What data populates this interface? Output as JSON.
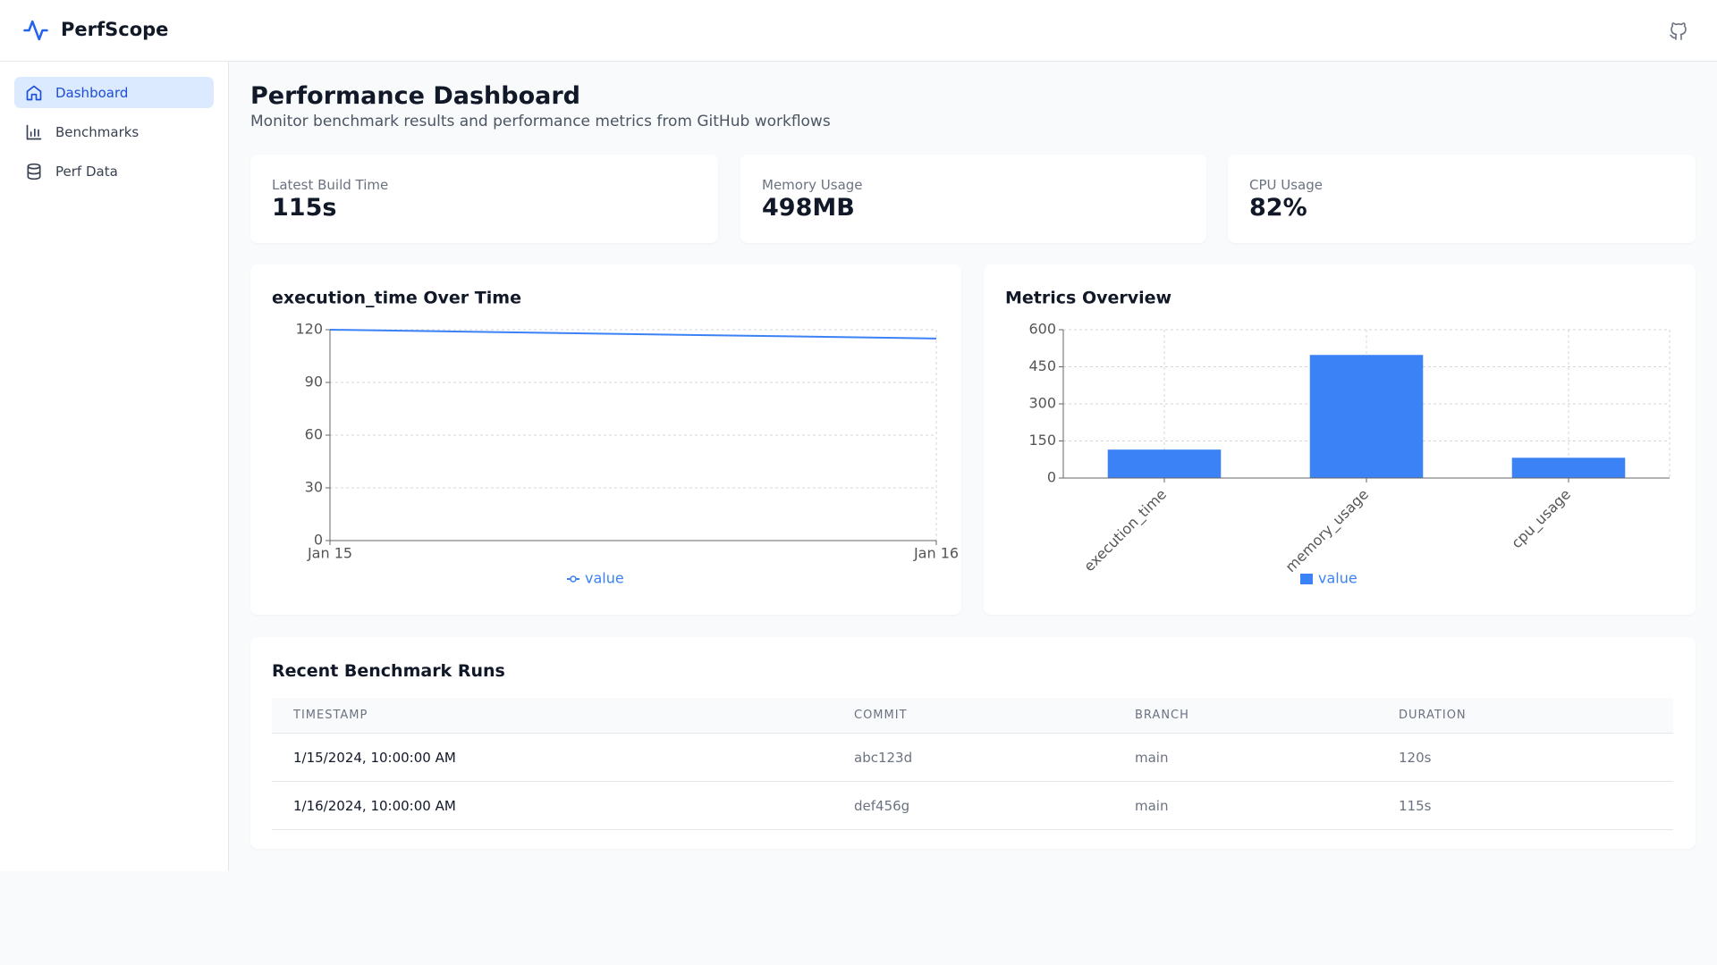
{
  "header": {
    "brand": "PerfScope"
  },
  "sidebar": {
    "items": [
      "Dashboard",
      "Benchmarks",
      "Perf Data"
    ]
  },
  "page": {
    "title": "Performance Dashboard",
    "subtitle": "Monitor benchmark results and performance metrics from GitHub workflows"
  },
  "stats": [
    {
      "label": "Latest Build Time",
      "value": "115s"
    },
    {
      "label": "Memory Usage",
      "value": "498MB"
    },
    {
      "label": "CPU Usage",
      "value": "82%"
    }
  ],
  "chart_data": [
    {
      "type": "line",
      "title": "execution_time Over Time",
      "x": [
        "Jan 15",
        "Jan 16"
      ],
      "series": [
        {
          "name": "value",
          "color": "#3b82f6",
          "values": [
            120,
            115
          ]
        }
      ],
      "ylim": [
        0,
        120
      ],
      "yticks": [
        0,
        30,
        60,
        90,
        120
      ],
      "grid": true,
      "legend": "bottom"
    },
    {
      "type": "bar",
      "title": "Metrics Overview",
      "categories": [
        "execution_time",
        "memory_usage",
        "cpu_usage"
      ],
      "series": [
        {
          "name": "value",
          "color": "#3b82f6",
          "values": [
            115,
            498,
            82
          ]
        }
      ],
      "ylim": [
        0,
        600
      ],
      "yticks": [
        0,
        150,
        300,
        450,
        600
      ],
      "grid": true,
      "legend": "bottom"
    }
  ],
  "table": {
    "title": "Recent Benchmark Runs",
    "columns": [
      "TIMESTAMP",
      "COMMIT",
      "BRANCH",
      "DURATION"
    ],
    "rows": [
      [
        "1/15/2024, 10:00:00 AM",
        "abc123d",
        "main",
        "120s"
      ],
      [
        "1/16/2024, 10:00:00 AM",
        "def456g",
        "main",
        "115s"
      ]
    ]
  }
}
